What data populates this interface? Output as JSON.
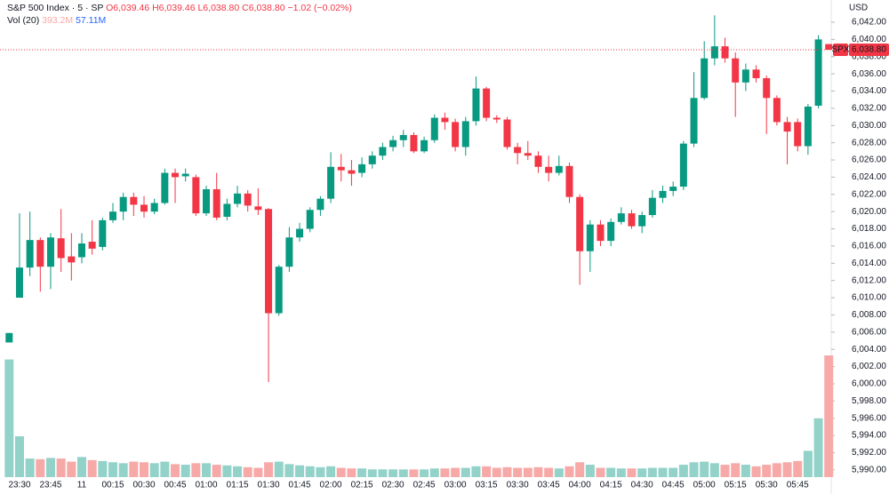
{
  "chart_data": {
    "type": "candlestick",
    "title": "S&P 500 Index · 5 · SP",
    "ohlc_labels": {
      "open": "O6,039.46",
      "high": "H6,039.46",
      "low": "L6,038.80",
      "close": "C6,038.80",
      "change": "−1.02 (−0.02%)"
    },
    "volume_legend": {
      "name": "Vol (20)",
      "last": "393.2M",
      "average": "57.11M"
    },
    "currency": "USD",
    "symbol": "SPX",
    "last_price": {
      "value": 6038.8,
      "label": "6,038.80"
    },
    "up_color": "#089981",
    "down_color": "#f23645",
    "volume_up_color": "#92d2c9",
    "volume_down_color": "#f7a9a8",
    "series": {
      "open": [
        6004.8,
        6010,
        6013.5,
        6016.7,
        6013.6,
        6016.9,
        6014.8,
        6014.7,
        6016.5,
        6015.9,
        6019,
        6020,
        6021.7,
        6020.8,
        6020,
        6021,
        6024.5,
        6024.1,
        6024,
        6019.8,
        6022.6,
        6019.4,
        6020.9,
        6022.1,
        6020.6,
        6020.3,
        6008.2,
        6013.6,
        6017,
        6018,
        6020.2,
        6021.5,
        6025.2,
        6024.8,
        6024.5,
        6025.5,
        6026.5,
        6027.5,
        6028.3,
        6028.9,
        6027,
        6028.3,
        6030.9,
        6030.4,
        6027.5,
        6030.5,
        6034.3,
        6030.9,
        6030.7,
        6027.5,
        6026.8,
        6026.5,
        6025.2,
        6024.5,
        6025.3,
        6021.7,
        6015.4,
        6018.5,
        6016.6,
        6018.8,
        6019.8,
        6018.3,
        6019.6,
        6021.6,
        6022.4,
        6022.9,
        6027.9,
        6033.2,
        6037.8,
        6039.2,
        6037.8,
        6035,
        6036.5,
        6035.5,
        6033.2,
        6030.4,
        6030.4,
        6027.6,
        6032.3,
        6039.46
      ],
      "high": [
        6005.9,
        6019.8,
        6020,
        6017,
        6017.5,
        6020.3,
        6017.5,
        6017.5,
        6019,
        6019.3,
        6021,
        6022.2,
        6022.2,
        6021.8,
        6021.5,
        6025,
        6025,
        6025,
        6024.3,
        6023,
        6024.5,
        6021.5,
        6023,
        6022.5,
        6022.7,
        6020.4,
        6013.8,
        6018.2,
        6018.7,
        6020.5,
        6021.8,
        6026.9,
        6026.7,
        6026,
        6026.3,
        6027,
        6028,
        6028.8,
        6029.5,
        6029.2,
        6028.7,
        6031.3,
        6031.5,
        6030.8,
        6031,
        6035.7,
        6034.5,
        6031.2,
        6031,
        6028,
        6028.2,
        6027,
        6026.5,
        6026.5,
        6025.7,
        6022,
        6019,
        6019,
        6019.2,
        6020.5,
        6020.2,
        6020,
        6022.5,
        6023,
        6023.5,
        6028.2,
        6036.2,
        6039.8,
        6042.8,
        6040.2,
        6038.5,
        6037.2,
        6037,
        6035.8,
        6033.5,
        6031,
        6030.8,
        6032.5,
        6040.5,
        6039.46
      ],
      "low": [
        6004.8,
        6010,
        6012.5,
        6010.7,
        6011,
        6013,
        6012,
        6014,
        6015,
        6015.5,
        6018.7,
        6019,
        6019.5,
        6019.3,
        6019.7,
        6020.8,
        6021,
        6023.5,
        6019.5,
        6019.5,
        6019,
        6019,
        6020.5,
        6020,
        6019.6,
        6000.2,
        6007.9,
        6013,
        6016.5,
        6017.6,
        6019.5,
        6021,
        6023.5,
        6023,
        6024,
        6025,
        6026,
        6027,
        6027.5,
        6026.8,
        6026.8,
        6028,
        6029.5,
        6027,
        6026.5,
        6030,
        6030.5,
        6030.3,
        6027.2,
        6025.5,
        6026,
        6024.5,
        6023.5,
        6024.2,
        6021,
        6011.5,
        6013,
        6016,
        6016,
        6018.5,
        6018,
        6017.5,
        6019.3,
        6021,
        6021.8,
        6022.5,
        6027.5,
        6033,
        6037,
        6037.3,
        6031,
        6034,
        6035,
        6029,
        6030,
        6025.5,
        6027,
        6026.6,
        6032,
        6038.8
      ],
      "close": [
        6005.9,
        6013.5,
        6016.7,
        6013.6,
        6017,
        6014.6,
        6014.1,
        6016.3,
        6015.7,
        6019,
        6020,
        6021.7,
        6020.8,
        6020,
        6021,
        6024.5,
        6024,
        6024.4,
        6019.8,
        6022.6,
        6019.3,
        6020.9,
        6022.1,
        6020.7,
        6020.2,
        6008.2,
        6013.6,
        6017,
        6018,
        6020.2,
        6021.5,
        6025.2,
        6024.8,
        6024.4,
        6025.5,
        6026.5,
        6027.5,
        6028.3,
        6028.9,
        6027,
        6028.3,
        6030.9,
        6030.4,
        6027.5,
        6030.5,
        6034.3,
        6030.9,
        6030.7,
        6027.5,
        6026.8,
        6026.5,
        6025.2,
        6024.5,
        6025.3,
        6021.7,
        6015.4,
        6018.5,
        6016.6,
        6018.8,
        6019.8,
        6018.3,
        6019.6,
        6021.6,
        6022.4,
        6022.9,
        6027.9,
        6033.2,
        6037.8,
        6039.2,
        6037.8,
        6035,
        6036.5,
        6035.5,
        6033.2,
        6030.4,
        6029.3,
        6027.6,
        6032.2,
        6040,
        6038.8
      ],
      "volume": [
        380,
        132,
        60,
        58,
        62,
        60,
        50,
        65,
        55,
        52,
        48,
        45,
        50,
        48,
        45,
        50,
        42,
        40,
        45,
        45,
        40,
        38,
        35,
        32,
        30,
        48,
        50,
        42,
        38,
        35,
        32,
        35,
        30,
        28,
        28,
        25,
        25,
        25,
        25,
        25,
        25,
        28,
        28,
        30,
        30,
        35,
        35,
        30,
        32,
        30,
        30,
        32,
        30,
        28,
        35,
        48,
        40,
        30,
        30,
        28,
        28,
        28,
        30,
        30,
        30,
        40,
        48,
        50,
        45,
        40,
        45,
        40,
        35,
        40,
        45,
        48,
        52,
        85,
        190,
        393.2
      ]
    },
    "xticks": [
      {
        "value": 1,
        "label": "23:30"
      },
      {
        "value": 4,
        "label": "23:45"
      },
      {
        "value": 7,
        "label": "11"
      },
      {
        "value": 10,
        "label": "00:15"
      },
      {
        "value": 13,
        "label": "00:30"
      },
      {
        "value": 16,
        "label": "00:45"
      },
      {
        "value": 19,
        "label": "01:00"
      },
      {
        "value": 22,
        "label": "01:15"
      },
      {
        "value": 25,
        "label": "01:30"
      },
      {
        "value": 28,
        "label": "01:45"
      },
      {
        "value": 31,
        "label": "02:00"
      },
      {
        "value": 34,
        "label": "02:15"
      },
      {
        "value": 37,
        "label": "02:30"
      },
      {
        "value": 40,
        "label": "02:45"
      },
      {
        "value": 43,
        "label": "03:00"
      },
      {
        "value": 46,
        "label": "03:15"
      },
      {
        "value": 49,
        "label": "03:30"
      },
      {
        "value": 52,
        "label": "03:45"
      },
      {
        "value": 55,
        "label": "04:00"
      },
      {
        "value": 58,
        "label": "04:15"
      },
      {
        "value": 61,
        "label": "04:30"
      },
      {
        "value": 64,
        "label": "04:45"
      },
      {
        "value": 67,
        "label": "05:00"
      },
      {
        "value": 70,
        "label": "05:15"
      },
      {
        "value": 73,
        "label": "05:30"
      },
      {
        "value": 76,
        "label": "05:45"
      }
    ],
    "ylim": [
      5989.16,
      6044.58
    ],
    "yticks": [
      {
        "value": 5990,
        "label": "5,990.00"
      },
      {
        "value": 5992,
        "label": "5,992.00"
      },
      {
        "value": 5994,
        "label": "5,994.00"
      },
      {
        "value": 5996,
        "label": "5,996.00"
      },
      {
        "value": 5998,
        "label": "5,998.00"
      },
      {
        "value": 6000,
        "label": "6,000.00"
      },
      {
        "value": 6002,
        "label": "6,002.00"
      },
      {
        "value": 6004,
        "label": "6,004.00"
      },
      {
        "value": 6006,
        "label": "6,006.00"
      },
      {
        "value": 6008,
        "label": "6,008.00"
      },
      {
        "value": 6010,
        "label": "6,010.00"
      },
      {
        "value": 6012,
        "label": "6,012.00"
      },
      {
        "value": 6014,
        "label": "6,014.00"
      },
      {
        "value": 6016,
        "label": "6,016.00"
      },
      {
        "value": 6018,
        "label": "6,018.00"
      },
      {
        "value": 6020,
        "label": "6,020.00"
      },
      {
        "value": 6022,
        "label": "6,022.00"
      },
      {
        "value": 6024,
        "label": "6,024.00"
      },
      {
        "value": 6026,
        "label": "6,026.00"
      },
      {
        "value": 6028,
        "label": "6,028.00"
      },
      {
        "value": 6030,
        "label": "6,030.00"
      },
      {
        "value": 6032,
        "label": "6,032.00"
      },
      {
        "value": 6034,
        "label": "6,034.00"
      },
      {
        "value": 6036,
        "label": "6,036.00"
      },
      {
        "value": 6038,
        "label": "6,038.00"
      },
      {
        "value": 6040,
        "label": "6,040.00"
      },
      {
        "value": 6042,
        "label": "6,042.00"
      }
    ]
  }
}
